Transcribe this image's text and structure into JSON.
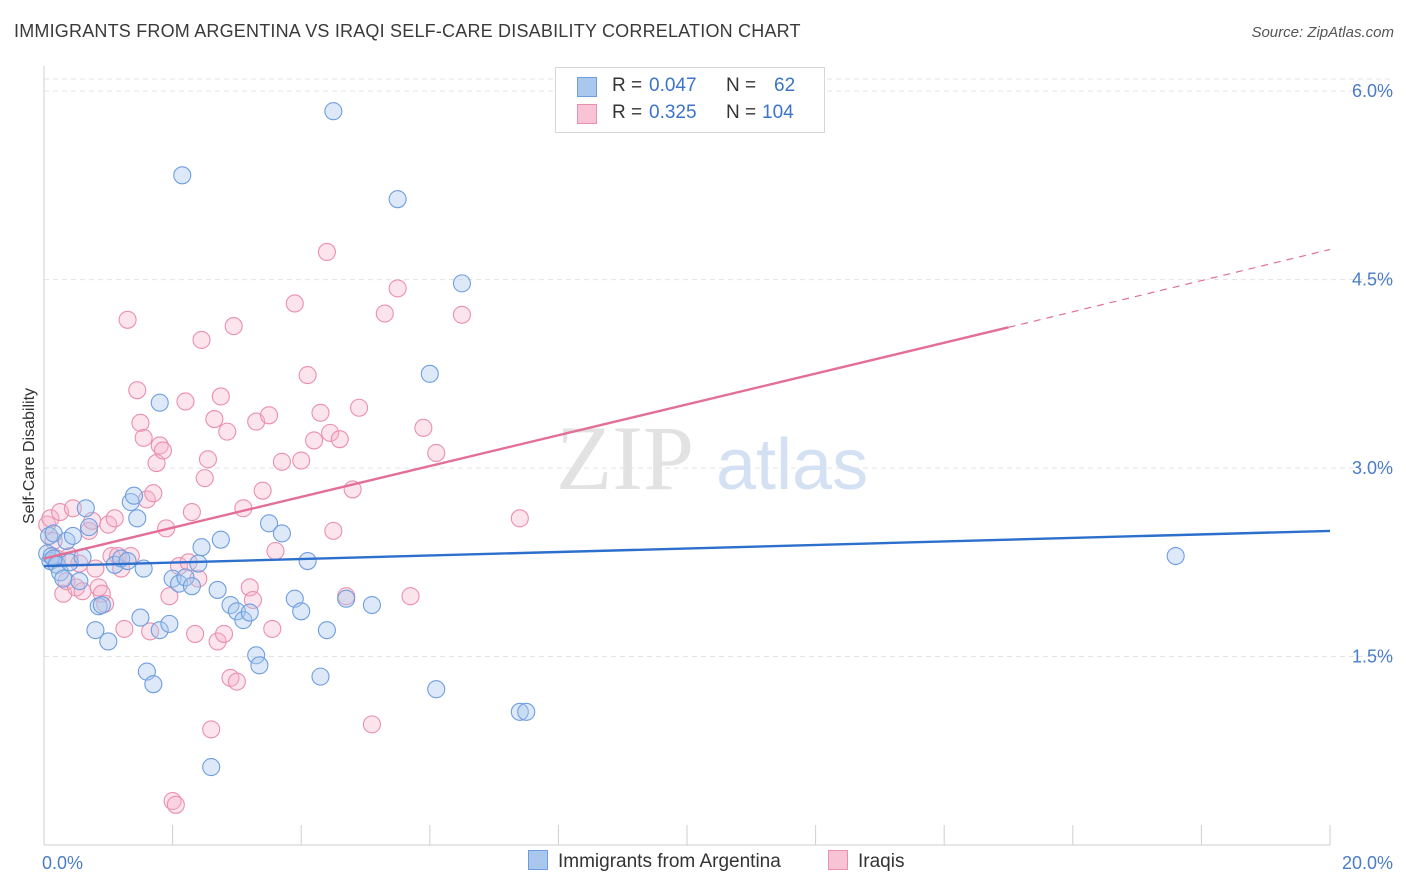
{
  "title": "IMMIGRANTS FROM ARGENTINA VS IRAQI SELF-CARE DISABILITY CORRELATION CHART",
  "source": "Source: ZipAtlas.com",
  "watermark": {
    "zip": "ZIP",
    "atlas": "atlas"
  },
  "legend": {
    "rows": [
      {
        "r_label": "R =",
        "r_value": "0.047",
        "n_label": "N =",
        "n_value": "62"
      },
      {
        "r_label": "R =",
        "r_value": "0.325",
        "n_label": "N =",
        "n_value": "104"
      }
    ]
  },
  "colors": {
    "blue_fill": "#aac8ee",
    "blue_stroke": "#6f9ee0",
    "blue_line": "#2d6fcc",
    "pink_fill": "#f5b3c8",
    "pink_stroke": "#eb8fae",
    "pink_line": "#e36f97",
    "grid": "#e3e3e3",
    "axis_text": "#4a7cc8"
  },
  "chart_data": {
    "type": "scatter",
    "title": "IMMIGRANTS FROM ARGENTINA VS IRAQI SELF-CARE DISABILITY CORRELATION CHART",
    "xlabel": "",
    "ylabel": "Self-Care Disability",
    "xlim": [
      0,
      20
    ],
    "ylim": [
      0,
      6.2
    ],
    "x_tick_labels": [
      "0.0%",
      "20.0%"
    ],
    "y_ticks": [
      1.5,
      3.0,
      4.5,
      6.0
    ],
    "y_tick_labels": [
      "1.5%",
      "3.0%",
      "4.5%",
      "6.0%"
    ],
    "grid": true,
    "legend_position": "top-center",
    "series": [
      {
        "name": "Immigrants from Argentina",
        "color": "#6f9ee0",
        "trend": {
          "x": [
            0,
            20
          ],
          "y": [
            2.22,
            2.5
          ],
          "style": "solid"
        },
        "points": [
          [
            0.05,
            2.32
          ],
          [
            0.08,
            2.46
          ],
          [
            0.1,
            2.26
          ],
          [
            0.12,
            2.3
          ],
          [
            0.15,
            2.28
          ],
          [
            0.15,
            2.48
          ],
          [
            0.2,
            2.23
          ],
          [
            0.25,
            2.17
          ],
          [
            0.3,
            2.12
          ],
          [
            0.35,
            2.42
          ],
          [
            0.4,
            2.25
          ],
          [
            0.45,
            2.46
          ],
          [
            0.55,
            2.1
          ],
          [
            0.6,
            2.29
          ],
          [
            0.65,
            2.68
          ],
          [
            0.7,
            2.53
          ],
          [
            0.8,
            1.71
          ],
          [
            0.85,
            1.9
          ],
          [
            0.9,
            1.91
          ],
          [
            1.0,
            1.62
          ],
          [
            1.1,
            2.23
          ],
          [
            1.2,
            2.28
          ],
          [
            1.3,
            2.26
          ],
          [
            1.35,
            2.73
          ],
          [
            1.4,
            2.78
          ],
          [
            1.45,
            2.6
          ],
          [
            1.5,
            1.81
          ],
          [
            1.55,
            2.2
          ],
          [
            1.6,
            1.38
          ],
          [
            1.7,
            1.28
          ],
          [
            1.8,
            1.71
          ],
          [
            1.8,
            3.52
          ],
          [
            1.95,
            1.76
          ],
          [
            2.0,
            2.12
          ],
          [
            2.1,
            2.08
          ],
          [
            2.15,
            5.33
          ],
          [
            2.2,
            2.13
          ],
          [
            2.3,
            2.06
          ],
          [
            2.4,
            2.24
          ],
          [
            2.45,
            2.37
          ],
          [
            2.6,
            0.62
          ],
          [
            2.7,
            2.03
          ],
          [
            2.75,
            2.43
          ],
          [
            2.9,
            1.91
          ],
          [
            3.0,
            1.86
          ],
          [
            3.1,
            1.79
          ],
          [
            3.2,
            1.85
          ],
          [
            3.3,
            1.51
          ],
          [
            3.35,
            1.43
          ],
          [
            3.5,
            2.56
          ],
          [
            3.7,
            2.48
          ],
          [
            3.9,
            1.96
          ],
          [
            4.0,
            1.86
          ],
          [
            4.1,
            2.26
          ],
          [
            4.3,
            1.34
          ],
          [
            4.4,
            1.71
          ],
          [
            4.5,
            5.84
          ],
          [
            4.7,
            1.96
          ],
          [
            5.1,
            1.91
          ],
          [
            5.5,
            5.14
          ],
          [
            6.0,
            3.75
          ],
          [
            6.1,
            1.24
          ],
          [
            6.5,
            4.47
          ],
          [
            7.4,
            1.06
          ],
          [
            7.5,
            1.06
          ],
          [
            17.6,
            2.3
          ]
        ]
      },
      {
        "name": "Iraqis",
        "color": "#eb8fae",
        "trend": {
          "x": [
            0,
            15
          ],
          "y": [
            2.28,
            4.12
          ],
          "dashed_x": [
            15,
            20
          ],
          "dashed_y": [
            4.12,
            4.74
          ]
        },
        "points": [
          [
            0.05,
            2.55
          ],
          [
            0.1,
            2.6
          ],
          [
            0.15,
            2.42
          ],
          [
            0.2,
            2.28
          ],
          [
            0.25,
            2.65
          ],
          [
            0.3,
            2.0
          ],
          [
            0.35,
            2.1
          ],
          [
            0.4,
            2.3
          ],
          [
            0.45,
            2.68
          ],
          [
            0.5,
            2.05
          ],
          [
            0.55,
            2.24
          ],
          [
            0.6,
            2.02
          ],
          [
            0.7,
            2.5
          ],
          [
            0.75,
            2.58
          ],
          [
            0.8,
            2.2
          ],
          [
            0.85,
            2.05
          ],
          [
            0.9,
            2.0
          ],
          [
            0.95,
            1.92
          ],
          [
            1.0,
            2.55
          ],
          [
            1.05,
            2.3
          ],
          [
            1.1,
            2.6
          ],
          [
            1.15,
            2.3
          ],
          [
            1.2,
            2.2
          ],
          [
            1.25,
            1.72
          ],
          [
            1.3,
            4.18
          ],
          [
            1.35,
            2.3
          ],
          [
            1.45,
            3.62
          ],
          [
            1.5,
            3.36
          ],
          [
            1.55,
            3.24
          ],
          [
            1.6,
            2.75
          ],
          [
            1.65,
            1.7
          ],
          [
            1.7,
            2.8
          ],
          [
            1.75,
            3.04
          ],
          [
            1.8,
            3.18
          ],
          [
            1.85,
            3.14
          ],
          [
            1.9,
            2.52
          ],
          [
            1.95,
            1.98
          ],
          [
            2.0,
            0.35
          ],
          [
            2.05,
            0.32
          ],
          [
            2.1,
            2.22
          ],
          [
            2.2,
            3.53
          ],
          [
            2.25,
            2.25
          ],
          [
            2.3,
            2.65
          ],
          [
            2.35,
            1.68
          ],
          [
            2.4,
            2.12
          ],
          [
            2.45,
            4.02
          ],
          [
            2.5,
            2.92
          ],
          [
            2.55,
            3.07
          ],
          [
            2.6,
            0.92
          ],
          [
            2.65,
            3.39
          ],
          [
            2.7,
            1.62
          ],
          [
            2.75,
            3.57
          ],
          [
            2.8,
            1.68
          ],
          [
            2.85,
            3.29
          ],
          [
            2.9,
            1.33
          ],
          [
            2.95,
            4.13
          ],
          [
            3.0,
            1.3
          ],
          [
            3.1,
            2.68
          ],
          [
            3.2,
            2.05
          ],
          [
            3.25,
            1.95
          ],
          [
            3.3,
            3.37
          ],
          [
            3.4,
            2.82
          ],
          [
            3.5,
            3.42
          ],
          [
            3.55,
            1.72
          ],
          [
            3.6,
            2.34
          ],
          [
            3.7,
            3.05
          ],
          [
            3.9,
            4.31
          ],
          [
            4.0,
            3.06
          ],
          [
            4.1,
            3.74
          ],
          [
            4.2,
            3.22
          ],
          [
            4.3,
            3.44
          ],
          [
            4.4,
            4.72
          ],
          [
            4.45,
            3.28
          ],
          [
            4.5,
            2.5
          ],
          [
            4.6,
            3.23
          ],
          [
            4.7,
            1.98
          ],
          [
            4.8,
            2.83
          ],
          [
            4.9,
            3.48
          ],
          [
            5.1,
            0.96
          ],
          [
            5.3,
            4.23
          ],
          [
            5.5,
            4.43
          ],
          [
            5.7,
            1.98
          ],
          [
            5.9,
            3.32
          ],
          [
            6.1,
            3.12
          ],
          [
            6.5,
            4.22
          ],
          [
            7.4,
            2.6
          ]
        ]
      }
    ]
  },
  "bottom_legend": {
    "series_a": "Immigrants from Argentina",
    "series_b": "Iraqis"
  }
}
